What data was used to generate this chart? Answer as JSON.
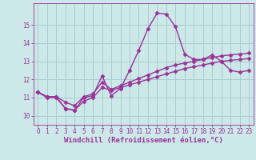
{
  "xlabel": "Windchill (Refroidissement éolien,°C)",
  "background_color": "#cce8e8",
  "grid_color": "#aacccc",
  "line_color": "#993399",
  "xlim": [
    -0.5,
    23.5
  ],
  "ylim": [
    9.5,
    16.2
  ],
  "xticks": [
    0,
    1,
    2,
    3,
    4,
    5,
    6,
    7,
    8,
    9,
    10,
    11,
    12,
    13,
    14,
    15,
    16,
    17,
    18,
    19,
    20,
    21,
    22,
    23
  ],
  "yticks": [
    10,
    11,
    12,
    13,
    14,
    15
  ],
  "series1_x": [
    0,
    1,
    2,
    3,
    4,
    5,
    6,
    7,
    8,
    9,
    10,
    11,
    12,
    13,
    14,
    15,
    16,
    17,
    18,
    19,
    20,
    21,
    22,
    23
  ],
  "series1_y": [
    11.3,
    11.0,
    11.0,
    10.4,
    10.3,
    11.0,
    11.1,
    12.2,
    11.1,
    11.5,
    12.5,
    13.6,
    14.8,
    15.65,
    15.6,
    14.9,
    13.4,
    13.1,
    13.1,
    13.35,
    13.0,
    12.5,
    12.4,
    12.5
  ],
  "series2_x": [
    0,
    1,
    2,
    3,
    4,
    5,
    6,
    7,
    8,
    9,
    10,
    11,
    12,
    13,
    14,
    15,
    16,
    17,
    18,
    19,
    20,
    21,
    22,
    23
  ],
  "series2_y": [
    11.3,
    11.05,
    11.05,
    10.75,
    10.55,
    11.05,
    11.2,
    11.85,
    11.45,
    11.65,
    11.85,
    12.05,
    12.25,
    12.45,
    12.65,
    12.8,
    12.9,
    13.0,
    13.1,
    13.2,
    13.3,
    13.35,
    13.4,
    13.45
  ],
  "series3_x": [
    0,
    1,
    2,
    3,
    4,
    5,
    6,
    7,
    8,
    9,
    10,
    11,
    12,
    13,
    14,
    15,
    16,
    17,
    18,
    19,
    20,
    21,
    22,
    23
  ],
  "series3_y": [
    11.3,
    11.05,
    11.05,
    10.4,
    10.3,
    10.8,
    11.0,
    11.55,
    11.4,
    11.55,
    11.7,
    11.85,
    12.0,
    12.15,
    12.3,
    12.45,
    12.6,
    12.7,
    12.8,
    12.9,
    13.0,
    13.05,
    13.1,
    13.15
  ],
  "marker": "D",
  "marker_size": 2.5,
  "linewidth": 1.0,
  "xlabel_fontsize": 6.5,
  "tick_fontsize": 5.5,
  "xlabel_color": "#993399",
  "tick_color": "#993399",
  "spine_color": "#993399"
}
